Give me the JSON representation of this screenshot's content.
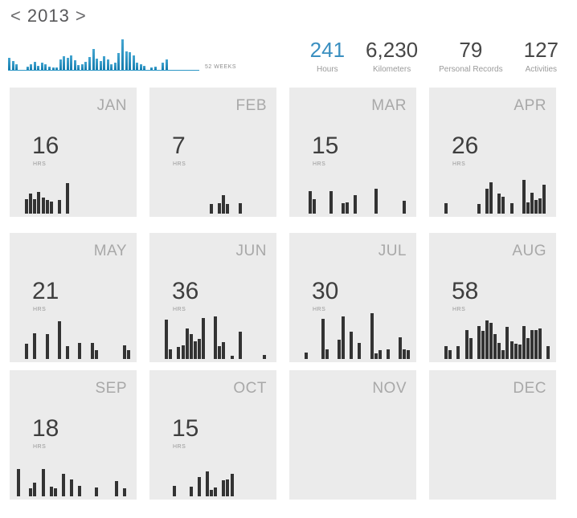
{
  "year_nav": {
    "prev_label": "<",
    "year": "2013",
    "next_label": ">"
  },
  "weekly_overview": {
    "label": "52 WEEKS",
    "weeks": 52,
    "bar_color": "#2492c6",
    "values": [
      15,
      11,
      7,
      0,
      0,
      4,
      7,
      10,
      5,
      9,
      7,
      4,
      3,
      3,
      13,
      17,
      15,
      18,
      12,
      6,
      7,
      10,
      16,
      26,
      14,
      11,
      17,
      13,
      7,
      9,
      21,
      38,
      23,
      22,
      18,
      9,
      7,
      5,
      0,
      3,
      4,
      0,
      9,
      13,
      0,
      0,
      0,
      0,
      0,
      0,
      0,
      0
    ]
  },
  "stats": [
    {
      "value": "241",
      "label": "Hours",
      "highlight": true
    },
    {
      "value": "6,230",
      "label": "Kilometers",
      "highlight": false
    },
    {
      "value": "79",
      "label": "Personal Records",
      "highlight": false
    },
    {
      "value": "127",
      "label": "Activities",
      "highlight": false
    }
  ],
  "months": [
    {
      "label": "JAN",
      "hours": "16",
      "unit": "HRS",
      "bars": [
        [
          4,
          18
        ],
        [
          5,
          25
        ],
        [
          6,
          18
        ],
        [
          7,
          27
        ],
        [
          8,
          20
        ],
        [
          9,
          17
        ],
        [
          10,
          15
        ],
        [
          12,
          17
        ],
        [
          14,
          38
        ]
      ]
    },
    {
      "label": "FEB",
      "hours": "7",
      "unit": "HRS",
      "bars": [
        [
          15,
          12
        ],
        [
          17,
          13
        ],
        [
          18,
          23
        ],
        [
          19,
          12
        ],
        [
          22,
          13
        ]
      ]
    },
    {
      "label": "MAR",
      "hours": "15",
      "unit": "HRS",
      "bars": [
        [
          5,
          28
        ],
        [
          6,
          18
        ],
        [
          10,
          28
        ],
        [
          13,
          13
        ],
        [
          14,
          14
        ],
        [
          16,
          23
        ],
        [
          21,
          31
        ],
        [
          28,
          16
        ]
      ]
    },
    {
      "label": "APR",
      "hours": "26",
      "unit": "HRS",
      "bars": [
        [
          4,
          13
        ],
        [
          12,
          12
        ],
        [
          14,
          31
        ],
        [
          15,
          39
        ],
        [
          17,
          25
        ],
        [
          18,
          21
        ],
        [
          20,
          13
        ],
        [
          23,
          42
        ],
        [
          24,
          14
        ],
        [
          25,
          26
        ],
        [
          26,
          17
        ],
        [
          27,
          19
        ],
        [
          28,
          36
        ]
      ]
    },
    {
      "label": "MAY",
      "hours": "21",
      "unit": "HRS",
      "bars": [
        [
          4,
          19
        ],
        [
          6,
          32
        ],
        [
          9,
          31
        ],
        [
          12,
          47
        ],
        [
          14,
          16
        ],
        [
          17,
          20
        ],
        [
          20,
          20
        ],
        [
          21,
          11
        ],
        [
          28,
          17
        ],
        [
          29,
          11
        ]
      ]
    },
    {
      "label": "JUN",
      "hours": "36",
      "unit": "HRS",
      "bars": [
        [
          4,
          49
        ],
        [
          5,
          12
        ],
        [
          7,
          15
        ],
        [
          8,
          17
        ],
        [
          9,
          38
        ],
        [
          10,
          31
        ],
        [
          11,
          22
        ],
        [
          12,
          25
        ],
        [
          13,
          51
        ],
        [
          16,
          53
        ],
        [
          17,
          16
        ],
        [
          18,
          21
        ],
        [
          20,
          4
        ],
        [
          22,
          34
        ],
        [
          28,
          5
        ]
      ]
    },
    {
      "label": "JUL",
      "hours": "30",
      "unit": "HRS",
      "bars": [
        [
          4,
          8
        ],
        [
          8,
          50
        ],
        [
          9,
          12
        ],
        [
          12,
          24
        ],
        [
          13,
          53
        ],
        [
          15,
          34
        ],
        [
          17,
          20
        ],
        [
          20,
          57
        ],
        [
          21,
          7
        ],
        [
          22,
          11
        ],
        [
          24,
          12
        ],
        [
          27,
          27
        ],
        [
          28,
          12
        ],
        [
          29,
          11
        ]
      ]
    },
    {
      "label": "AUG",
      "hours": "58",
      "unit": "HRS",
      "bars": [
        [
          4,
          16
        ],
        [
          5,
          11
        ],
        [
          7,
          16
        ],
        [
          9,
          36
        ],
        [
          10,
          26
        ],
        [
          12,
          41
        ],
        [
          13,
          35
        ],
        [
          14,
          48
        ],
        [
          15,
          45
        ],
        [
          16,
          31
        ],
        [
          17,
          20
        ],
        [
          18,
          11
        ],
        [
          19,
          40
        ],
        [
          20,
          22
        ],
        [
          21,
          19
        ],
        [
          22,
          18
        ],
        [
          23,
          41
        ],
        [
          24,
          26
        ],
        [
          25,
          36
        ],
        [
          26,
          36
        ],
        [
          27,
          38
        ],
        [
          29,
          16
        ]
      ]
    },
    {
      "label": "SEP",
      "hours": "18",
      "unit": "HRS",
      "bars": [
        [
          2,
          34
        ],
        [
          5,
          10
        ],
        [
          6,
          17
        ],
        [
          8,
          34
        ],
        [
          10,
          12
        ],
        [
          11,
          10
        ],
        [
          13,
          28
        ],
        [
          15,
          21
        ],
        [
          17,
          13
        ],
        [
          21,
          11
        ],
        [
          26,
          19
        ],
        [
          28,
          10
        ]
      ]
    },
    {
      "label": "OCT",
      "hours": "15",
      "unit": "HRS",
      "bars": [
        [
          6,
          13
        ],
        [
          10,
          12
        ],
        [
          12,
          24
        ],
        [
          14,
          31
        ],
        [
          15,
          8
        ],
        [
          16,
          11
        ],
        [
          18,
          20
        ],
        [
          19,
          21
        ],
        [
          20,
          28
        ]
      ]
    },
    {
      "label": "NOV",
      "hours": "",
      "unit": "",
      "bars": []
    },
    {
      "label": "DEC",
      "hours": "",
      "unit": "",
      "bars": []
    }
  ],
  "colors": {
    "card_bg": "#ebebeb",
    "daily_bar": "#333333",
    "accent_blue": "#2492c6",
    "month_label_gray": "#a8a8a8",
    "number_dark": "#3e3e3e",
    "stat_label_gray": "#9a9a9a"
  }
}
